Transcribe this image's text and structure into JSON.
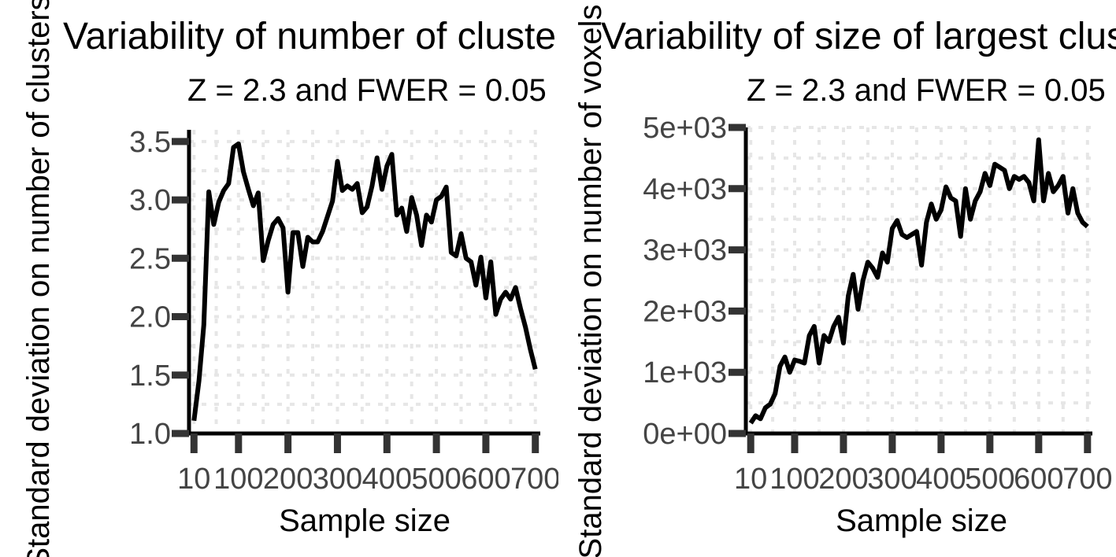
{
  "chart_data": [
    {
      "type": "line",
      "title": "Variability of number of clusters",
      "subtitle": "Z = 2.3 and FWER = 0.05",
      "xlabel": "Sample size",
      "ylabel": "Standard deviation on number of clusters",
      "xlim": [
        0,
        710
      ],
      "ylim": [
        1.0,
        3.6
      ],
      "xticks": [
        10,
        100,
        200,
        300,
        400,
        500,
        600,
        700
      ],
      "xtick_labels": [
        "10",
        "100",
        "200",
        "300",
        "400",
        "500",
        "600",
        "700"
      ],
      "yticks": [
        1.0,
        1.5,
        2.0,
        2.5,
        3.0,
        3.5
      ],
      "ytick_labels": [
        "1.0",
        "1.5",
        "2.0",
        "2.5",
        "3.0",
        "3.5"
      ],
      "grid": true,
      "series": [
        {
          "x": [
            10,
            20,
            30,
            40,
            50,
            60,
            70,
            80,
            90,
            100,
            110,
            120,
            130,
            140,
            150,
            160,
            170,
            180,
            190,
            200,
            210,
            220,
            230,
            240,
            250,
            260,
            270,
            280,
            290,
            300,
            310,
            320,
            330,
            340,
            350,
            360,
            370,
            380,
            390,
            400,
            410,
            420,
            430,
            440,
            450,
            460,
            470,
            480,
            490,
            500,
            510,
            520,
            530,
            540,
            550,
            560,
            570,
            580,
            590,
            600,
            610,
            620,
            630,
            640,
            650,
            660,
            670,
            680,
            690,
            700
          ],
          "y": [
            1.11,
            1.45,
            1.93,
            3.07,
            2.79,
            2.98,
            3.08,
            3.14,
            3.45,
            3.48,
            3.24,
            3.09,
            2.95,
            3.06,
            2.48,
            2.65,
            2.79,
            2.84,
            2.76,
            2.21,
            2.72,
            2.72,
            2.43,
            2.68,
            2.64,
            2.64,
            2.73,
            2.86,
            2.99,
            3.33,
            3.08,
            3.12,
            3.09,
            3.14,
            2.89,
            2.94,
            3.12,
            3.36,
            3.09,
            3.29,
            3.39,
            2.87,
            2.93,
            2.73,
            3.02,
            2.87,
            2.61,
            2.87,
            2.81,
            3.0,
            3.03,
            3.11,
            2.55,
            2.52,
            2.71,
            2.5,
            2.47,
            2.27,
            2.51,
            2.16,
            2.47,
            2.02,
            2.15,
            2.21,
            2.15,
            2.25,
            2.07,
            1.91,
            1.72,
            1.55
          ]
        }
      ]
    },
    {
      "type": "line",
      "title": "Variability of size of largest cluster",
      "subtitle": "Z = 2.3 and FWER = 0.05",
      "xlabel": "Sample size",
      "ylabel": "Standard deviation on number of voxels",
      "xlim": [
        0,
        710
      ],
      "ylim": [
        0,
        5000
      ],
      "xticks": [
        10,
        100,
        200,
        300,
        400,
        500,
        600,
        700
      ],
      "xtick_labels": [
        "10",
        "100",
        "200",
        "300",
        "400",
        "500",
        "600",
        "700"
      ],
      "yticks": [
        0,
        1000,
        2000,
        3000,
        4000,
        5000
      ],
      "ytick_labels": [
        "0e+00",
        "1e+03",
        "2e+03",
        "3e+03",
        "4e+03",
        "5e+03"
      ],
      "grid": true,
      "series": [
        {
          "x": [
            10,
            20,
            30,
            40,
            50,
            60,
            70,
            80,
            90,
            100,
            110,
            120,
            130,
            140,
            150,
            160,
            170,
            180,
            190,
            200,
            210,
            220,
            230,
            240,
            250,
            260,
            270,
            280,
            290,
            300,
            310,
            320,
            330,
            340,
            350,
            360,
            370,
            380,
            390,
            400,
            410,
            420,
            430,
            440,
            450,
            460,
            470,
            480,
            490,
            500,
            510,
            520,
            530,
            540,
            550,
            560,
            570,
            580,
            590,
            600,
            610,
            620,
            630,
            640,
            650,
            660,
            670,
            680,
            690,
            700
          ],
          "y": [
            170,
            290,
            240,
            420,
            480,
            650,
            1100,
            1250,
            1000,
            1200,
            1180,
            1150,
            1600,
            1750,
            1150,
            1600,
            1500,
            1750,
            1900,
            1480,
            2250,
            2600,
            2030,
            2500,
            2800,
            2700,
            2550,
            2950,
            2800,
            3350,
            3480,
            3250,
            3200,
            3250,
            3300,
            2750,
            3450,
            3750,
            3500,
            3650,
            4030,
            3850,
            3800,
            3220,
            4000,
            3500,
            3800,
            3950,
            4250,
            4050,
            4400,
            4350,
            4300,
            4000,
            4200,
            4150,
            4200,
            4100,
            3800,
            4800,
            3800,
            4250,
            3950,
            4050,
            4200,
            3600,
            4000,
            3600,
            3450,
            3380
          ]
        }
      ]
    }
  ]
}
